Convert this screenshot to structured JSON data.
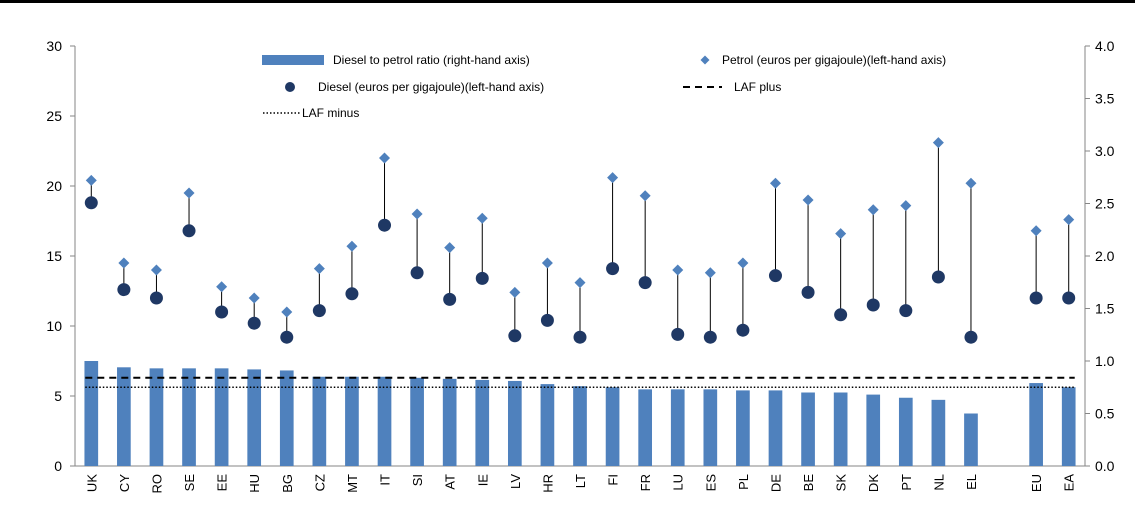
{
  "chart_data": {
    "type": "bar",
    "categories": [
      "UK",
      "CY",
      "RO",
      "SE",
      "EE",
      "HU",
      "BG",
      "CZ",
      "MT",
      "IT",
      "SI",
      "AT",
      "IE",
      "LV",
      "HR",
      "LT",
      "FI",
      "FR",
      "LU",
      "ES",
      "PL",
      "DE",
      "BE",
      "SK",
      "DK",
      "PT",
      "NL",
      "EL",
      "EU",
      "EA"
    ],
    "series": [
      {
        "name": "Diesel to petrol ratio (right-hand axis)",
        "kind": "bar",
        "axis": "right",
        "color": "#4F81BD",
        "values": [
          1.0,
          0.94,
          0.93,
          0.93,
          0.93,
          0.92,
          0.91,
          0.85,
          0.85,
          0.85,
          0.84,
          0.83,
          0.82,
          0.81,
          0.78,
          0.76,
          0.75,
          0.73,
          0.73,
          0.73,
          0.72,
          0.72,
          0.7,
          0.7,
          0.68,
          0.65,
          0.63,
          0.5,
          0.79,
          0.75
        ]
      },
      {
        "name": "Petrol (euros per gigajoule)(left-hand axis)",
        "kind": "diamond",
        "axis": "left",
        "color": "#4F81BD",
        "values": [
          20.4,
          14.5,
          14.0,
          19.5,
          12.8,
          12.0,
          11.0,
          14.1,
          15.7,
          22.0,
          18.0,
          15.6,
          17.7,
          12.4,
          14.5,
          13.1,
          20.6,
          19.3,
          14.0,
          13.8,
          14.5,
          20.2,
          19.0,
          16.6,
          18.3,
          18.6,
          23.1,
          20.2,
          16.8,
          17.6
        ]
      },
      {
        "name": "Diesel (euros per gigajoule)(left-hand axis)",
        "kind": "circle",
        "axis": "left",
        "color": "#1F3864",
        "values": [
          18.8,
          12.6,
          12.0,
          16.8,
          11.0,
          10.2,
          9.2,
          11.1,
          12.3,
          17.2,
          13.8,
          11.9,
          13.4,
          9.3,
          10.4,
          9.2,
          14.1,
          13.1,
          9.4,
          9.2,
          9.7,
          13.6,
          12.4,
          10.8,
          11.5,
          11.1,
          13.5,
          9.2,
          12.0,
          12.0
        ]
      },
      {
        "name": "LAF plus",
        "kind": "dashed",
        "axis": "right",
        "color": "#000000",
        "value": 0.84
      },
      {
        "name": "LAF minus",
        "kind": "dotted",
        "axis": "right",
        "color": "#000000",
        "value": 0.75
      }
    ],
    "left_axis": {
      "ylim": [
        0,
        30
      ],
      "ticks": [
        "0",
        "5",
        "10",
        "15",
        "20",
        "25",
        "30"
      ]
    },
    "right_axis": {
      "ylim": [
        0,
        4
      ],
      "ticks": [
        "0.0",
        "0.5",
        "1.0",
        "1.5",
        "2.0",
        "2.5",
        "3.0",
        "3.5",
        "4.0"
      ]
    },
    "gap_before_category": "EU",
    "grid": false,
    "legend_position": "top"
  }
}
